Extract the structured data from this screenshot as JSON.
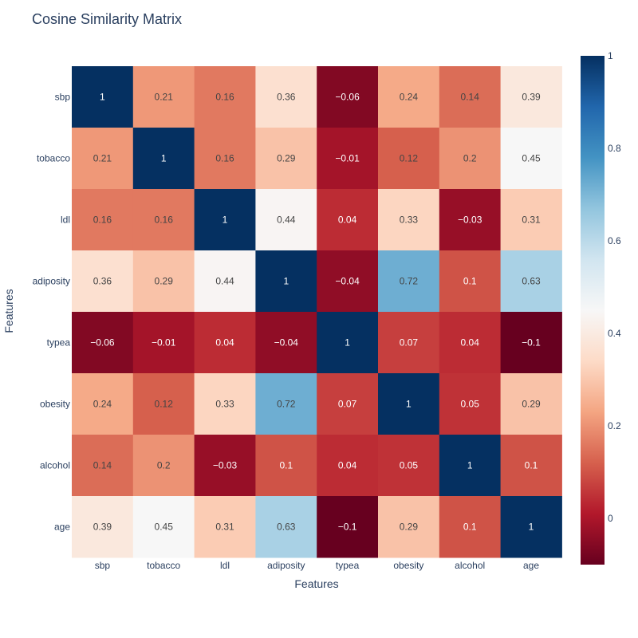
{
  "chart_data": {
    "type": "heatmap",
    "title": "Cosine Similarity Matrix",
    "xlabel": "Features",
    "ylabel": "Features",
    "x": [
      "sbp",
      "tobacco",
      "ldl",
      "adiposity",
      "typea",
      "obesity",
      "alcohol",
      "age"
    ],
    "y": [
      "sbp",
      "tobacco",
      "ldl",
      "adiposity",
      "typea",
      "obesity",
      "alcohol",
      "age"
    ],
    "z": [
      [
        1,
        0.21,
        0.16,
        0.36,
        -0.06,
        0.24,
        0.14,
        0.39
      ],
      [
        0.21,
        1,
        0.16,
        0.29,
        -0.01,
        0.12,
        0.2,
        0.45
      ],
      [
        0.16,
        0.16,
        1,
        0.44,
        0.04,
        0.33,
        -0.03,
        0.31
      ],
      [
        0.36,
        0.29,
        0.44,
        1,
        -0.04,
        0.72,
        0.1,
        0.63
      ],
      [
        -0.06,
        -0.01,
        0.04,
        -0.04,
        1,
        0.07,
        0.04,
        -0.1
      ],
      [
        0.24,
        0.12,
        0.33,
        0.72,
        0.07,
        1,
        0.05,
        0.29
      ],
      [
        0.14,
        0.2,
        -0.03,
        0.1,
        0.04,
        0.05,
        1,
        0.1
      ],
      [
        0.39,
        0.45,
        0.31,
        0.63,
        -0.1,
        0.29,
        0.1,
        1
      ]
    ],
    "zlim": [
      -0.1,
      1
    ],
    "colorscale": "RdBu",
    "colorbar_ticks": [
      0,
      0.2,
      0.4,
      0.6,
      0.8,
      1
    ],
    "colorscale_stops": [
      "#67001f",
      "#b2182b",
      "#d6604d",
      "#f4a582",
      "#fddbc7",
      "#f7f7f7",
      "#d1e5f0",
      "#92c5de",
      "#4393c3",
      "#2166ac",
      "#053061"
    ]
  }
}
